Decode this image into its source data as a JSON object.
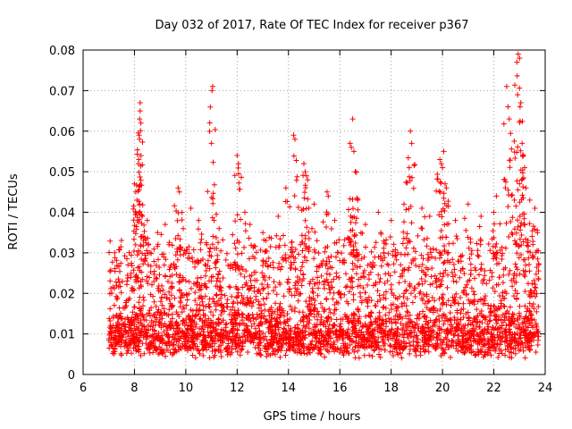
{
  "chart_data": {
    "type": "scatter",
    "title": "Day 032 of 2017, Rate Of TEC Index for receiver p367",
    "xlabel": "GPS time / hours",
    "ylabel": "ROTI / TECUs",
    "xlim": [
      6,
      24
    ],
    "ylim": [
      0,
      0.08
    ],
    "xticks": [
      6,
      8,
      10,
      12,
      14,
      16,
      18,
      20,
      22,
      24
    ],
    "yticks": [
      0,
      0.01,
      0.02,
      0.03,
      0.04,
      0.05,
      0.06,
      0.07,
      0.08
    ],
    "ytick_labels": [
      "0",
      "0.01",
      "0.02",
      "0.03",
      "0.04",
      "0.05",
      "0.06",
      "0.07",
      "0.08"
    ],
    "grid": true,
    "marker": "+",
    "color": "#ff0000",
    "data_range": {
      "x_start": 7.0,
      "x_end": 23.75
    },
    "series": [
      {
        "name": "ROTI",
        "points": [
          [
            8.0,
            0.047
          ],
          [
            8.05,
            0.045
          ],
          [
            8.1,
            0.043
          ],
          [
            8.15,
            0.052
          ],
          [
            8.18,
            0.059
          ],
          [
            8.2,
            0.058
          ],
          [
            8.2,
            0.063
          ],
          [
            8.22,
            0.065
          ],
          [
            8.22,
            0.067
          ],
          [
            8.25,
            0.062
          ],
          [
            8.3,
            0.039
          ],
          [
            8.5,
            0.038
          ],
          [
            8.9,
            0.035
          ],
          [
            9.2,
            0.037
          ],
          [
            9.7,
            0.046
          ],
          [
            9.75,
            0.045
          ],
          [
            9.9,
            0.036
          ],
          [
            10.2,
            0.041
          ],
          [
            10.5,
            0.038
          ],
          [
            11.0,
            0.057
          ],
          [
            11.02,
            0.07
          ],
          [
            11.05,
            0.071
          ],
          [
            11.1,
            0.038
          ],
          [
            11.3,
            0.036
          ],
          [
            12.0,
            0.054
          ],
          [
            12.05,
            0.052
          ],
          [
            12.3,
            0.04
          ],
          [
            12.5,
            0.037
          ],
          [
            13.0,
            0.035
          ],
          [
            13.6,
            0.039
          ],
          [
            13.9,
            0.046
          ],
          [
            14.2,
            0.059
          ],
          [
            14.25,
            0.058
          ],
          [
            14.6,
            0.052
          ],
          [
            14.65,
            0.05
          ],
          [
            14.7,
            0.049
          ],
          [
            14.75,
            0.048
          ],
          [
            15.0,
            0.042
          ],
          [
            15.5,
            0.045
          ],
          [
            15.55,
            0.044
          ],
          [
            15.8,
            0.038
          ],
          [
            16.4,
            0.057
          ],
          [
            16.45,
            0.056
          ],
          [
            16.5,
            0.063
          ],
          [
            16.55,
            0.055
          ],
          [
            16.6,
            0.05
          ],
          [
            16.7,
            0.043
          ],
          [
            17.0,
            0.037
          ],
          [
            17.5,
            0.04
          ],
          [
            18.0,
            0.038
          ],
          [
            18.5,
            0.042
          ],
          [
            18.7,
            0.051
          ],
          [
            18.75,
            0.06
          ],
          [
            18.8,
            0.057
          ],
          [
            19.2,
            0.041
          ],
          [
            19.5,
            0.039
          ],
          [
            19.9,
            0.053
          ],
          [
            19.95,
            0.052
          ],
          [
            20.0,
            0.051
          ],
          [
            20.05,
            0.055
          ],
          [
            20.1,
            0.047
          ],
          [
            20.15,
            0.046
          ],
          [
            20.5,
            0.038
          ],
          [
            21.0,
            0.042
          ],
          [
            21.5,
            0.039
          ],
          [
            22.0,
            0.04
          ],
          [
            22.1,
            0.044
          ],
          [
            22.5,
            0.071
          ],
          [
            22.55,
            0.066
          ],
          [
            22.6,
            0.063
          ],
          [
            22.8,
            0.043
          ],
          [
            22.9,
            0.077
          ],
          [
            22.95,
            0.079
          ],
          [
            23.0,
            0.078
          ],
          [
            23.02,
            0.066
          ],
          [
            23.05,
            0.067
          ],
          [
            23.1,
            0.057
          ],
          [
            23.15,
            0.054
          ],
          [
            23.2,
            0.051
          ],
          [
            23.25,
            0.046
          ],
          [
            23.4,
            0.043
          ],
          [
            23.6,
            0.041
          ],
          [
            23.7,
            0.035
          ]
        ],
        "background_band": {
          "description": "dense cluster of ROTI samples throughout the observation period",
          "typical_min": 0.004,
          "typical_max": 0.03
        }
      }
    ]
  }
}
